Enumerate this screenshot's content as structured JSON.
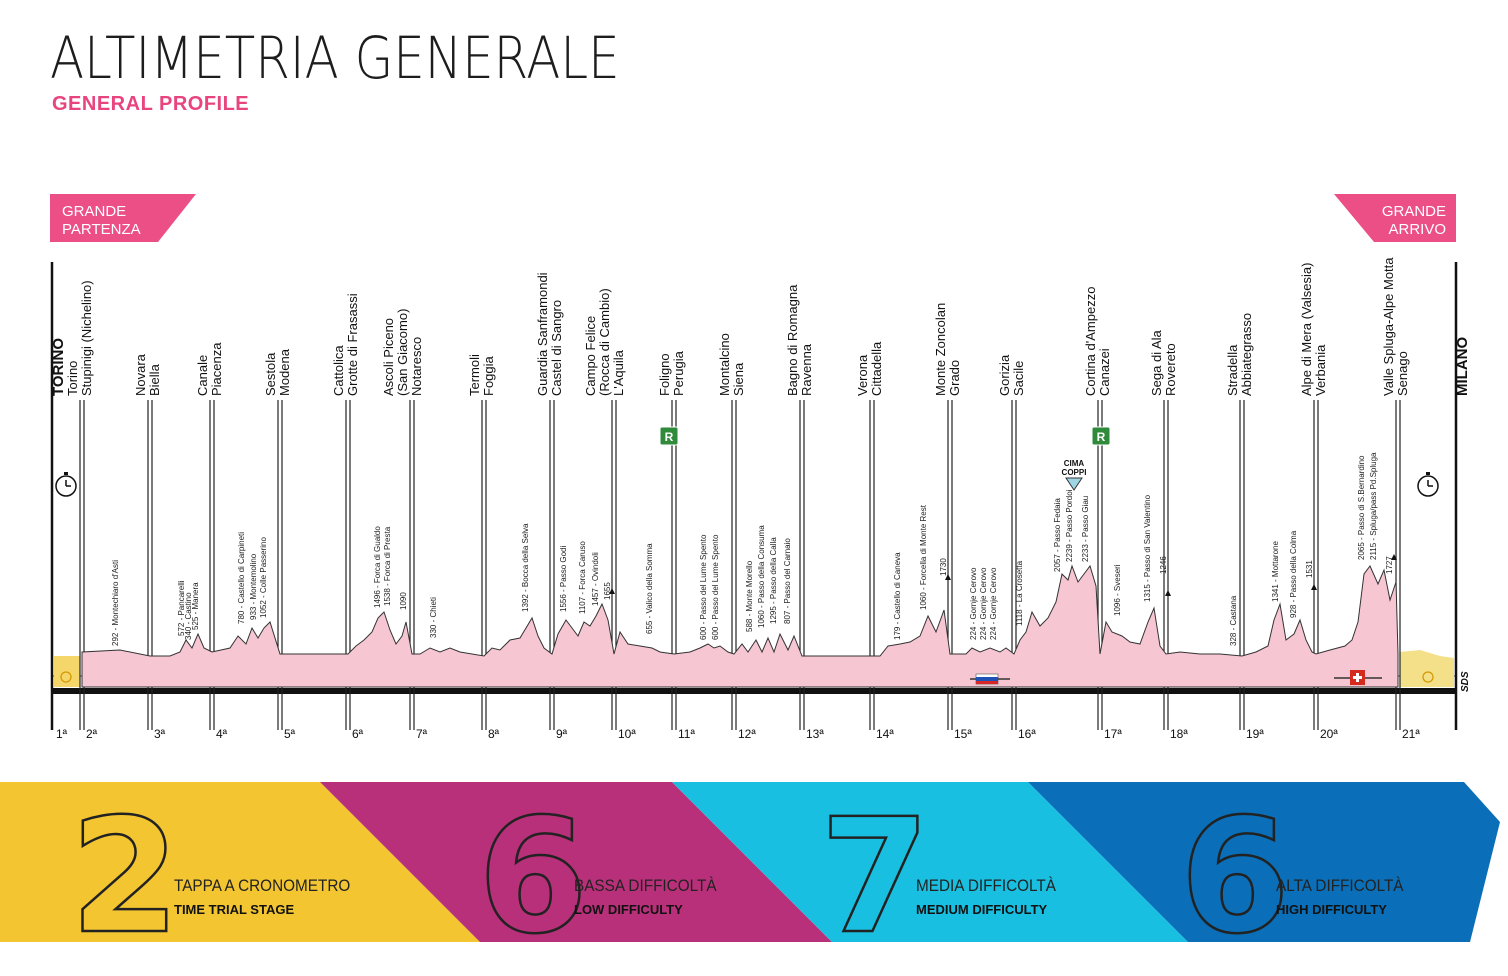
{
  "header": {
    "title": "ALTIMETRIA GENERALE",
    "subtitle": "GENERAL PROFILE"
  },
  "badges": {
    "start": [
      "GRANDE",
      "PARTENZA"
    ],
    "finish": [
      "GRANDE",
      "ARRIVO"
    ]
  },
  "colors": {
    "pink": "#e8447e",
    "profile_fill": "#f6c6d3",
    "yellow": "#f2c531",
    "magenta": "#b83079",
    "cyan": "#19bfe0",
    "blue": "#0a6fb8"
  },
  "stage_numbers": [
    "1ª",
    "2ª",
    "3ª",
    "4ª",
    "5ª",
    "6ª",
    "7ª",
    "8ª",
    "9ª",
    "10ª",
    "11ª",
    "12ª",
    "13ª",
    "14ª",
    "15ª",
    "16ª",
    "17ª",
    "18ª",
    "19ª",
    "20ª",
    "21ª"
  ],
  "cities": [
    {
      "lines": [
        "TORINO"
      ],
      "bold": true
    },
    {
      "lines": [
        "Torino",
        "Stupinigi (Nichelino)"
      ]
    },
    {
      "lines": [
        "Novara",
        "Biella"
      ]
    },
    {
      "lines": [
        "Canale",
        "Piacenza"
      ]
    },
    {
      "lines": [
        "Sestola",
        "Modena"
      ]
    },
    {
      "lines": [
        "Cattolica",
        "Grotte di Frasassi"
      ]
    },
    {
      "lines": [
        "Ascoli Piceno",
        "(San Giacomo)",
        "Notaresco"
      ]
    },
    {
      "lines": [
        "Termoli",
        "Foggia"
      ]
    },
    {
      "lines": [
        "Guardia Sanframondi",
        "Castel di Sangro"
      ]
    },
    {
      "lines": [
        "Campo Felice",
        "(Rocca di Cambio)",
        "L'Aquila"
      ]
    },
    {
      "lines": [
        "Foligno",
        "Perugia"
      ]
    },
    {
      "lines": [
        "Montalcino",
        "Siena"
      ]
    },
    {
      "lines": [
        "Bagno di Romagna",
        "Ravenna"
      ]
    },
    {
      "lines": [
        "Verona",
        "Cittadella"
      ]
    },
    {
      "lines": [
        "Monte Zoncolan",
        "Grado"
      ]
    },
    {
      "lines": [
        "Gorizia",
        "Sacile"
      ]
    },
    {
      "lines": [
        "Cortina d'Ampezzo",
        "Canazei"
      ]
    },
    {
      "lines": [
        "Sega di Ala",
        "Rovereto"
      ]
    },
    {
      "lines": [
        "Stradella",
        "Abbiategrasso"
      ]
    },
    {
      "lines": [
        "Alpe di Mera (Valsesia)",
        "Verbania"
      ]
    },
    {
      "lines": [
        "Valle Spluga-Alpe Motta",
        "Senago"
      ]
    },
    {
      "lines": [
        "MILANO"
      ],
      "bold": true
    }
  ],
  "climbs": [
    "292 - Montechiaro d'Asti",
    "572 - Pancarelli",
    "340 - Castino",
    "525 - Manera",
    "780 - Castello di Carpineti",
    "933 - Montemolino",
    "1052 - Colle Passerino",
    "1496 - Forca di Gualdo",
    "1538 - Forca di Presta",
    "1090",
    "330 - Chieti",
    "1392 - Bocca della Selva",
    "1556 - Passo Godi",
    "1107 - Forca Caruso",
    "1457 - Ovindoli",
    "1655",
    "655 - Valico della Somma",
    "600 - Passo del Lume Spento",
    "600 - Passo del Lume Spento",
    "588 - Monte Morello",
    "1060 - Passo della Consuma",
    "1295 - Passo della Calla",
    "807 - Passo del Carnaio",
    "179 - Castello di Caneva",
    "1060 - Forcella di Monte Rest",
    "1730",
    "224 - Gornje Cerovo",
    "224 - Gornje Cerovo",
    "224 - Gornje Cerovo",
    "1118 - La Crosetta",
    "2057 - Passo Fedaia",
    "2239 - Passo Pordoi",
    "2233 - Passo Giau",
    "1096 - Sveseri",
    "1315 - Passo di San Valentino",
    "1246",
    "328 - Castana",
    "1341 - Mottarone",
    "928 - Passo della Colma",
    "1531",
    "2065 - Passo di S.Bernardino",
    "2115 - Spluga/pass Pd.Spluga",
    "1727"
  ],
  "markers": {
    "rest_day": "R",
    "cima_coppi": [
      "CIMA",
      "COPPI"
    ],
    "logo": "SDS"
  },
  "stats": [
    {
      "number": "2",
      "it": "TAPPA A CRONOMETRO",
      "en": "TIME TRIAL STAGE"
    },
    {
      "number": "6",
      "it": "BASSA DIFFICOLTÀ",
      "en": "LOW DIFFICULTY"
    },
    {
      "number": "7",
      "it": "MEDIA DIFFICOLTÀ",
      "en": "MEDIUM DIFFICULTY"
    },
    {
      "number": "6",
      "it": "ALTA DIFFICOLTÀ",
      "en": "HIGH DIFFICULTY"
    }
  ]
}
